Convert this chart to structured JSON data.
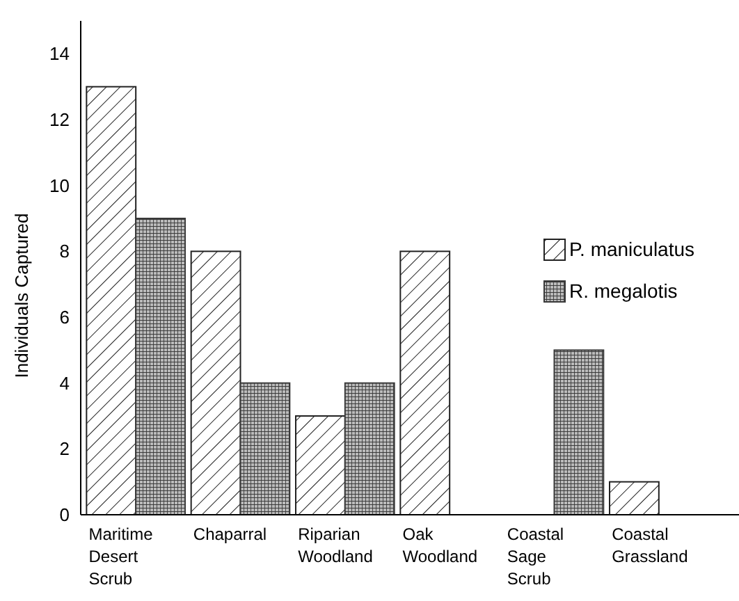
{
  "chart_data": {
    "type": "bar",
    "ylabel": "Individuals Captured",
    "categories": [
      "Maritime Desert Scrub",
      "Chaparral",
      "Riparian Woodland",
      "Oak Woodland",
      "Coastal Sage Scrub",
      "Coastal Grassland"
    ],
    "series": [
      {
        "name": "P. maniculatus",
        "color": "#222222",
        "values": [
          13,
          8,
          3,
          8,
          0,
          1
        ]
      },
      {
        "name": "R. megalotis",
        "color": "#3a3a3a",
        "values": [
          9,
          4,
          4,
          0,
          5,
          0
        ]
      }
    ],
    "ylim": [
      0,
      15
    ],
    "yticks": [
      0,
      2,
      4,
      6,
      8,
      10,
      12,
      14
    ],
    "grid": false,
    "legend": "right"
  }
}
